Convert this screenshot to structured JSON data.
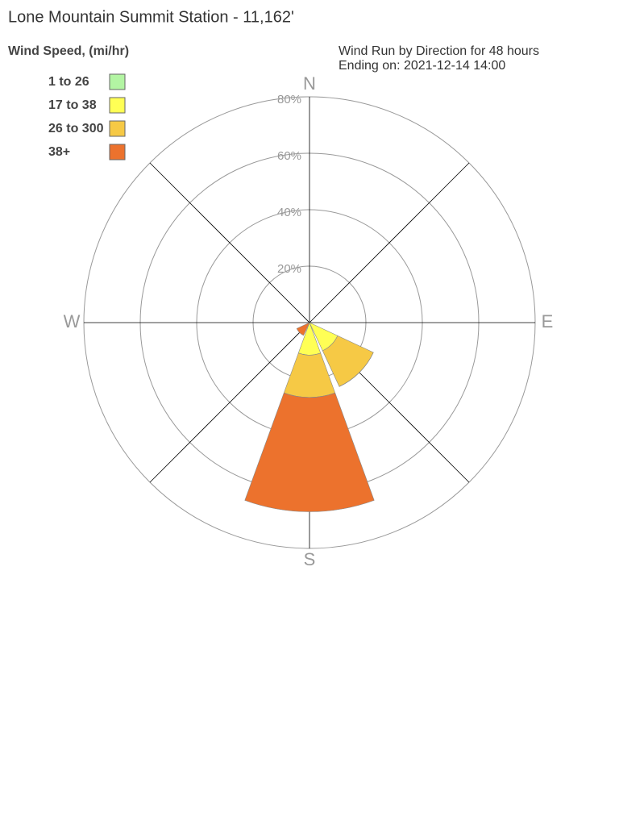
{
  "chart_data": {
    "type": "windrose",
    "title": "Lone Mountain Summit Station - 11,162'",
    "legend_title": "Wind Speed, (mi/hr)",
    "subtitle": [
      "Wind Run by Direction for 48 hours",
      "Ending on: 2021-12-14 14:00"
    ],
    "x": [
      135,
      180,
      225
    ],
    "series": [
      {
        "name": "1 to 26",
        "color": "#b3f5a3",
        "values": [
          0,
          0,
          0
        ]
      },
      {
        "name": "17 to 38",
        "color": "#ffff55",
        "values": [
          11,
          11.5,
          0
        ]
      },
      {
        "name": "26 to 300",
        "color": "#f6c945",
        "values": [
          14,
          15,
          0
        ]
      },
      {
        "name": "38+",
        "color": "#ec722d",
        "values": [
          0,
          40.5,
          5
        ]
      }
    ],
    "ylim": [
      0,
      80
    ],
    "yticks": [
      {
        "value": 20,
        "label": "20%"
      },
      {
        "value": 40,
        "label": "40%"
      },
      {
        "value": 60,
        "label": "60%"
      },
      {
        "value": 80,
        "label": "80%"
      }
    ],
    "xticks": [
      {
        "value": 0,
        "label": "N"
      },
      {
        "value": 90,
        "label": "E"
      },
      {
        "value": 180,
        "label": "S"
      },
      {
        "value": 270,
        "label": "W"
      }
    ]
  }
}
